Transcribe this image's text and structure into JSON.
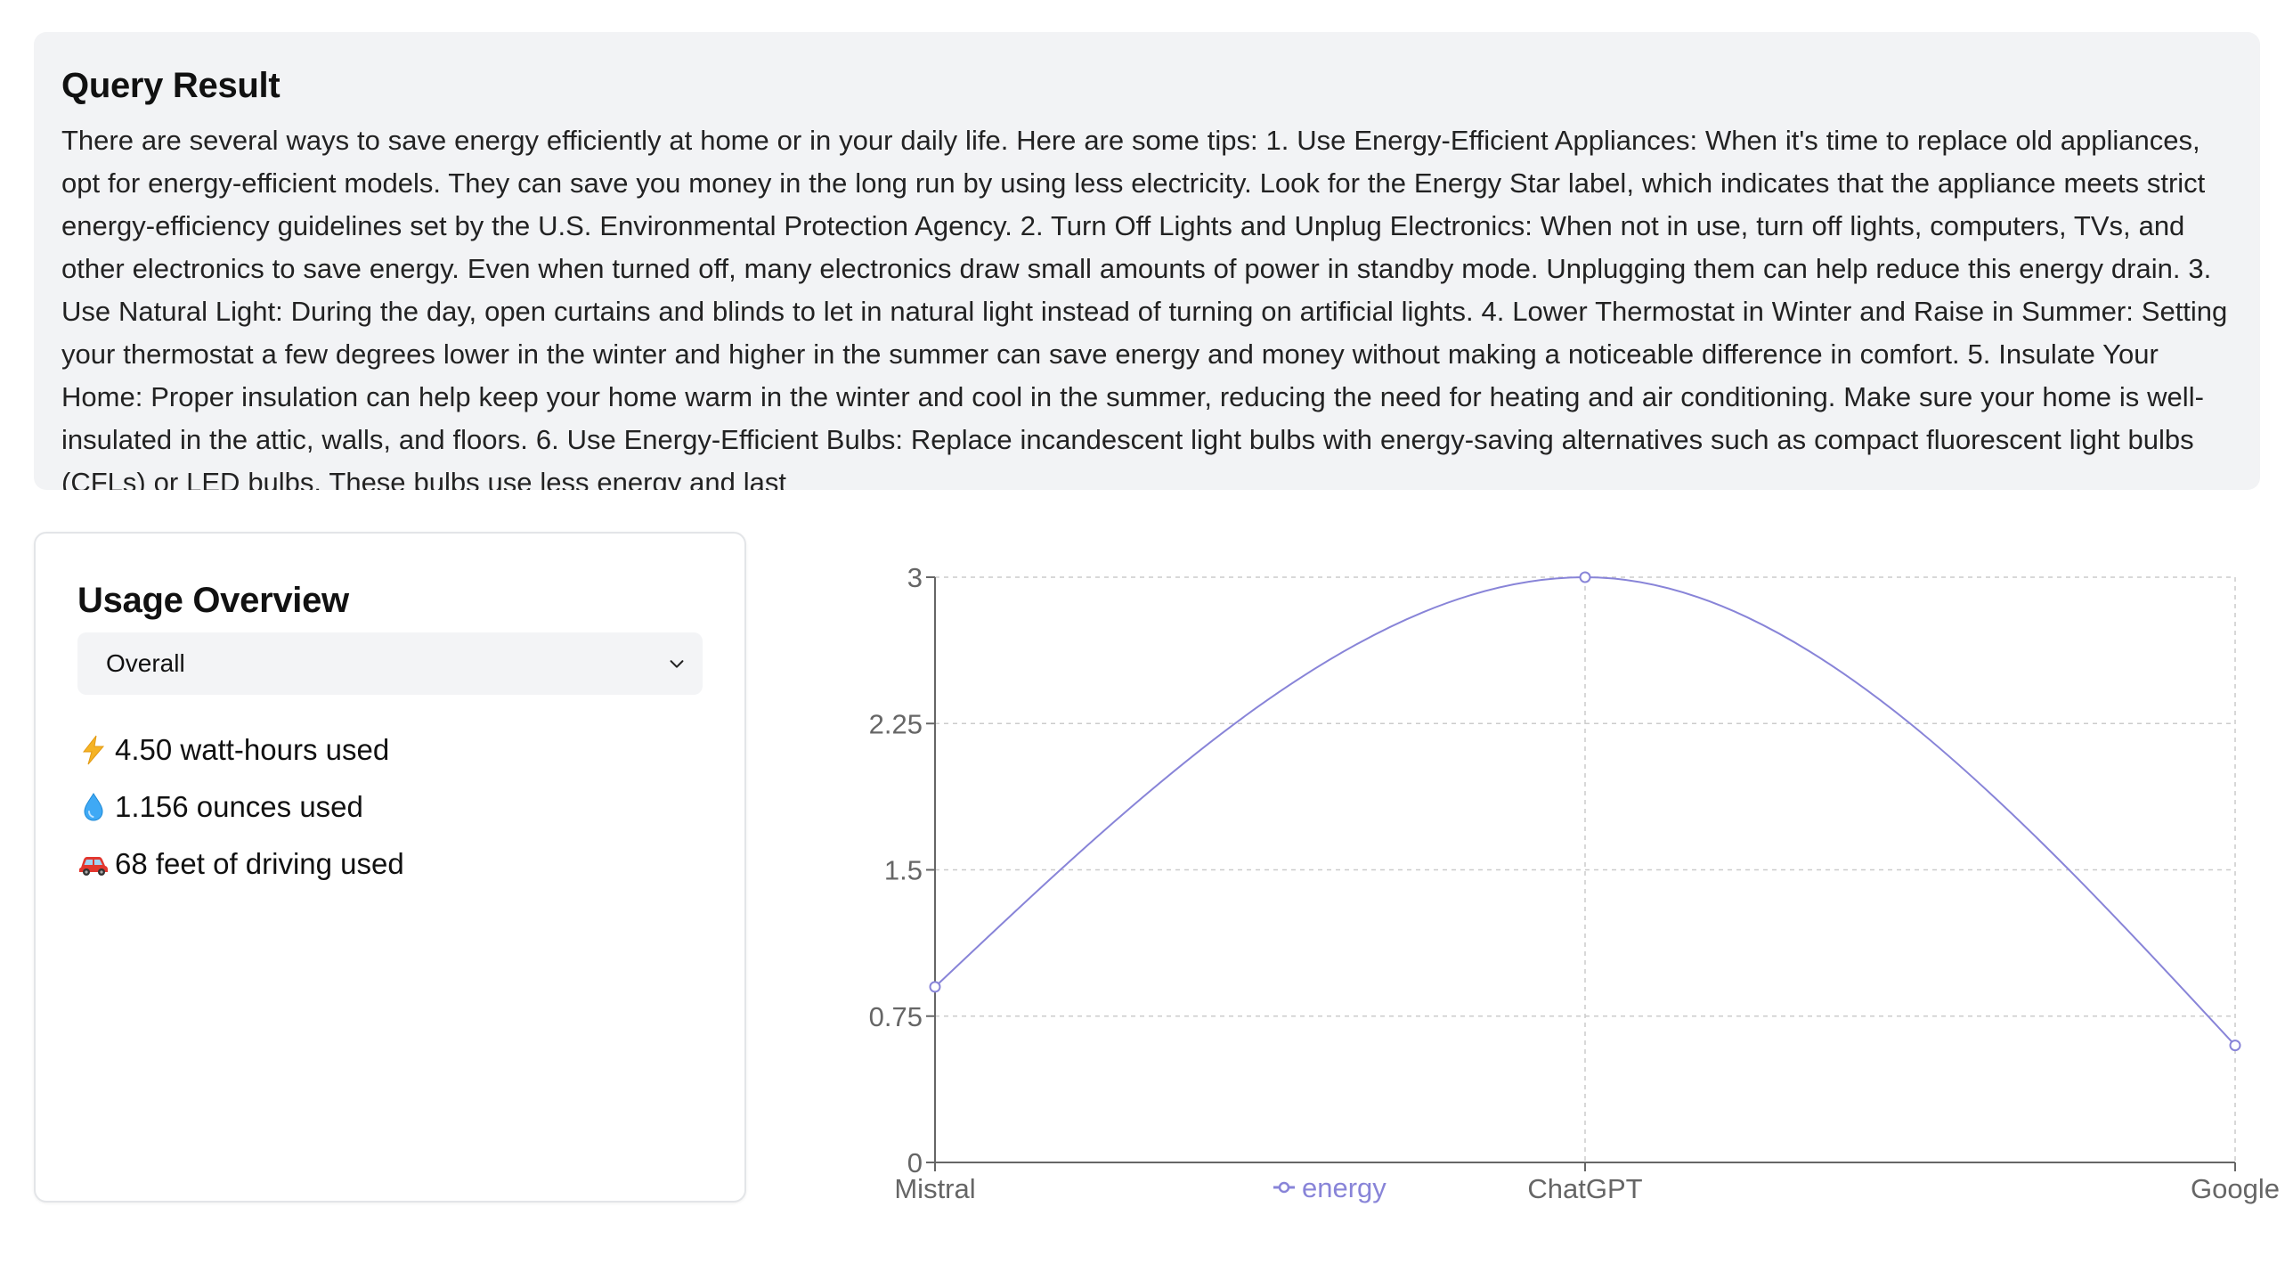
{
  "query": {
    "title": "Query Result",
    "text": "There are several ways to save energy efficiently at home or in your daily life. Here are some tips: 1. Use Energy-Efficient Appliances: When it's time to replace old appliances, opt for energy-efficient models. They can save you money in the long run by using less electricity. Look for the Energy Star label, which indicates that the appliance meets strict energy-efficiency guidelines set by the U.S. Environmental Protection Agency. 2. Turn Off Lights and Unplug Electronics: When not in use, turn off lights, computers, TVs, and other electronics to save energy. Even when turned off, many electronics draw small amounts of power in standby mode. Unplugging them can help reduce this energy drain. 3. Use Natural Light: During the day, open curtains and blinds to let in natural light instead of turning on artificial lights. 4. Lower Thermostat in Winter and Raise in Summer: Setting your thermostat a few degrees lower in the winter and higher in the summer can save energy and money without making a noticeable difference in comfort. 5. Insulate Your Home: Proper insulation can help keep your home warm in the winter and cool in the summer, reducing the need for heating and air conditioning. Make sure your home is well-insulated in the attic, walls, and floors. 6. Use Energy-Efficient Bulbs: Replace incandescent light bulbs with energy-saving alternatives such as compact fluorescent light bulbs (CFLs) or LED bulbs. These bulbs use less energy and last"
  },
  "usage": {
    "title": "Usage Overview",
    "select": {
      "value": "Overall",
      "icon": "chevron-down-icon"
    },
    "stats": [
      {
        "icon": "lightning-icon",
        "text": "4.50 watt-hours used"
      },
      {
        "icon": "water-drop-icon",
        "text": "1.156 ounces used"
      },
      {
        "icon": "car-icon",
        "text": "68 feet of driving used"
      }
    ]
  },
  "colors": {
    "series": "#8884d8",
    "grid": "#cccccc",
    "axis": "#666666",
    "card_bg": "#f2f3f5"
  },
  "chart_data": {
    "type": "line",
    "categories": [
      "Mistral",
      "ChatGPT",
      "Google"
    ],
    "series": [
      {
        "name": "energy",
        "values": [
          0.9,
          3.0,
          0.6
        ]
      }
    ],
    "ylim": [
      0,
      3
    ],
    "yticks": [
      "0",
      "0.75",
      "1.5",
      "2.25",
      "3"
    ],
    "grid": true,
    "legend": "bottom-center"
  }
}
